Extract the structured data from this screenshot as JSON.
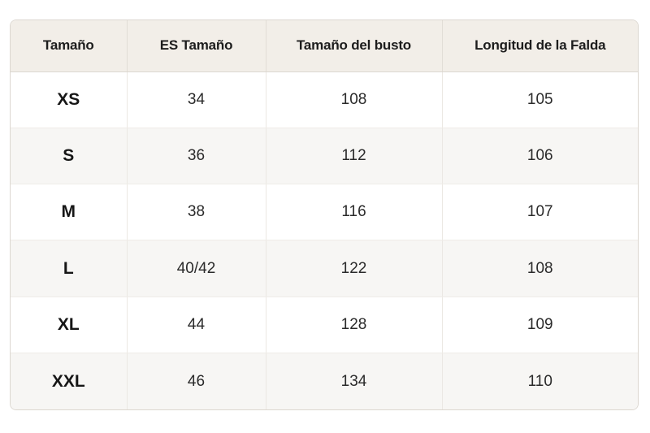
{
  "table": {
    "headers": [
      "Tamaño",
      "ES Tamaño",
      "Tamaño del busto",
      "Longitud de la Falda"
    ],
    "rows": [
      [
        "XS",
        "34",
        "108",
        "105"
      ],
      [
        "S",
        "36",
        "112",
        "106"
      ],
      [
        "M",
        "38",
        "116",
        "107"
      ],
      [
        "L",
        "40/42",
        "122",
        "108"
      ],
      [
        "XL",
        "44",
        "128",
        "109"
      ],
      [
        "XXL",
        "46",
        "134",
        "110"
      ]
    ]
  },
  "colors": {
    "header_bg": "#f2eee8",
    "alt_row_bg": "#f7f6f4",
    "border": "#dcd7d0"
  }
}
